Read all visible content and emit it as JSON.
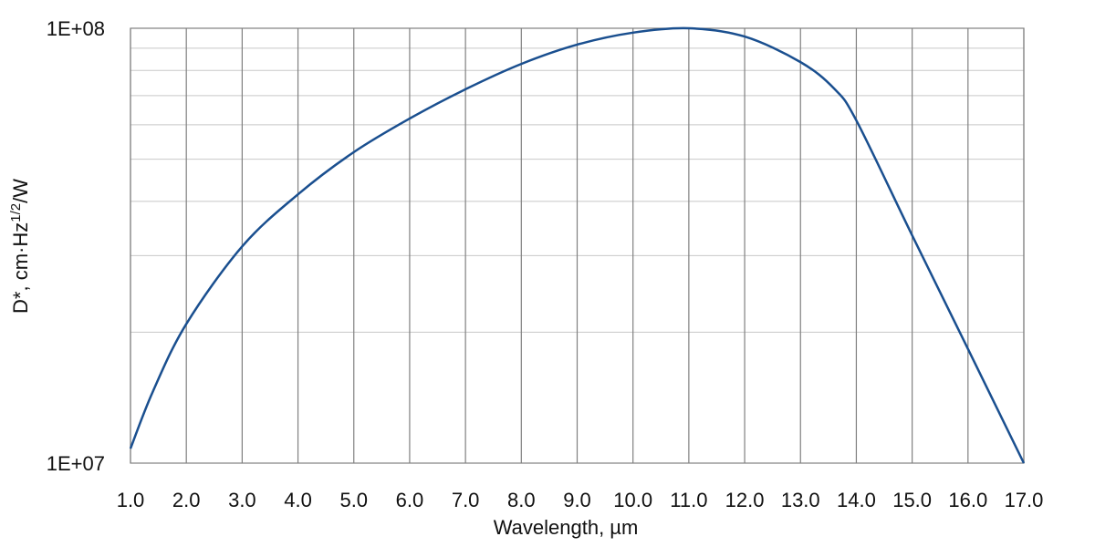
{
  "chart_data": {
    "type": "line",
    "x_label": "Wavelength, µm",
    "y_label": {
      "text": "D*, cm·Hz",
      "sup": "1/2",
      "suffix": "/W"
    },
    "log_y": true,
    "grid": true,
    "x": [
      1,
      1.4,
      2,
      3,
      4,
      5,
      6,
      7,
      8,
      9,
      10,
      11,
      12,
      13,
      13.6,
      14,
      15,
      16,
      17
    ],
    "series": [
      {
        "color": "#1a4f8f",
        "values": [
          10800000,
          14600000,
          20900000,
          31500000,
          41500000,
          51900000,
          62000000,
          72400000,
          82800000,
          91700000,
          97700000,
          100000000,
          95700000,
          83600000,
          72700000,
          61400000,
          33400000,
          18300000,
          10000000
        ]
      }
    ],
    "xlim": [
      1,
      17
    ],
    "xticks": [
      {
        "value": 1,
        "label": "1.0"
      },
      {
        "value": 2,
        "label": "2.0"
      },
      {
        "value": 3,
        "label": "3.0"
      },
      {
        "value": 4,
        "label": "4.0"
      },
      {
        "value": 5,
        "label": "5.0"
      },
      {
        "value": 6,
        "label": "6.0"
      },
      {
        "value": 7,
        "label": "7.0"
      },
      {
        "value": 8,
        "label": "8.0"
      },
      {
        "value": 9,
        "label": "9.0"
      },
      {
        "value": 10,
        "label": "10.0"
      },
      {
        "value": 11,
        "label": "11.0"
      },
      {
        "value": 12,
        "label": "12.0"
      },
      {
        "value": 13,
        "label": "13.0"
      },
      {
        "value": 14,
        "label": "14.0"
      },
      {
        "value": 15,
        "label": "15.0"
      },
      {
        "value": 16,
        "label": "16.0"
      },
      {
        "value": 17,
        "label": "17.0"
      }
    ],
    "ylim": [
      10000000,
      100000000
    ],
    "yticks": [
      {
        "value": 10000000,
        "label": "1E+07"
      },
      {
        "value": 100000000,
        "label": "1E+08"
      }
    ],
    "yminor": [
      20000000,
      30000000,
      40000000,
      50000000,
      60000000,
      70000000,
      80000000,
      90000000
    ]
  }
}
